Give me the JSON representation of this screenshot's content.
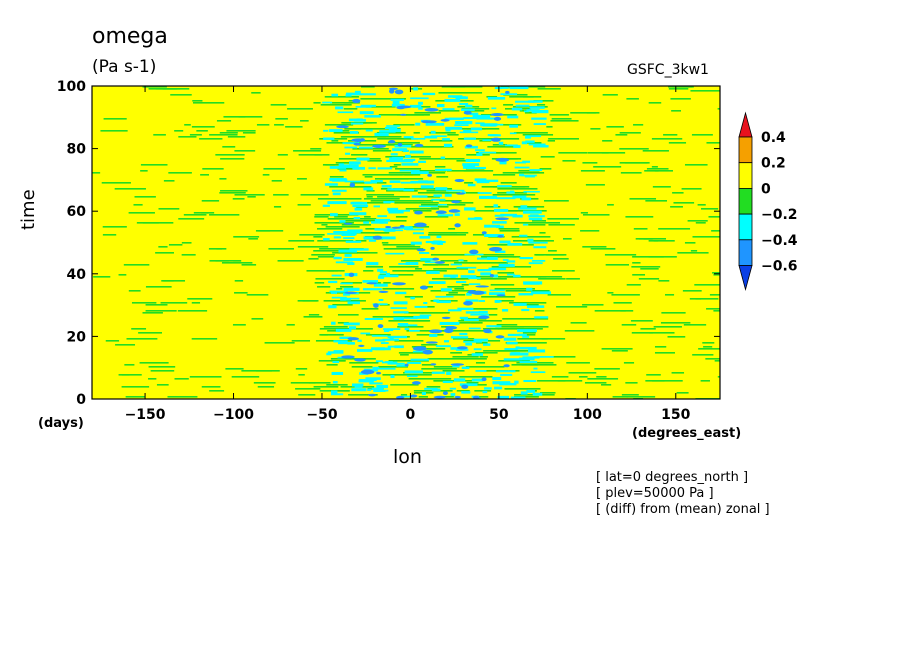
{
  "chart_data": {
    "type": "heatmap",
    "title": "omega",
    "units": "(Pa s-1)",
    "dataset": "GSFC_3kw1",
    "xlabel": "lon",
    "ylabel": "time",
    "x_unit": "(degrees_east)",
    "y_unit": "(days)",
    "xlim": [
      -180,
      175
    ],
    "ylim": [
      0,
      100
    ],
    "x_ticks": [
      -150,
      -100,
      -50,
      0,
      50,
      100,
      150
    ],
    "y_ticks": [
      0,
      20,
      40,
      60,
      80,
      100
    ],
    "colorbar": {
      "levels": [
        "0.4",
        "0.2",
        "0",
        "−0.2",
        "−0.4",
        "−0.6"
      ],
      "colors": [
        "#e8121e",
        "#f5a000",
        "#ffff00",
        "#22dd22",
        "#00ffff",
        "#1f95ff",
        "#0a40e6"
      ]
    },
    "notes": [
      "[ lat=0 degrees_north ]",
      "[ plev=50000 Pa ]",
      "[ (diff) from (mean) zonal ]"
    ]
  }
}
